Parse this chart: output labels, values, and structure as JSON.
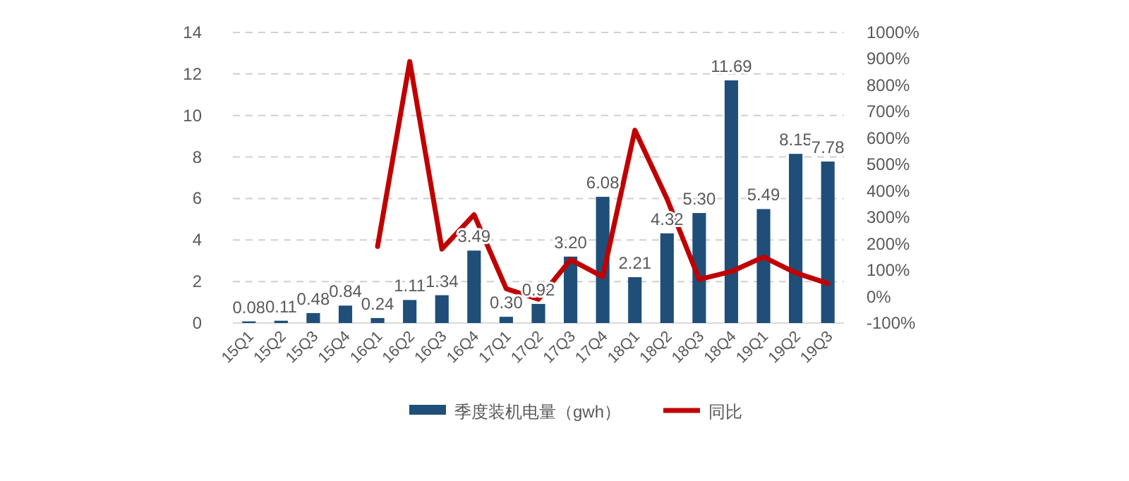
{
  "chart_data": {
    "type": "bar",
    "categories": [
      "15Q1",
      "15Q2",
      "15Q3",
      "15Q4",
      "16Q1",
      "16Q2",
      "16Q3",
      "16Q4",
      "17Q1",
      "17Q2",
      "17Q3",
      "17Q4",
      "18Q1",
      "18Q2",
      "18Q3",
      "18Q4",
      "19Q1",
      "19Q2",
      "19Q3"
    ],
    "series": [
      {
        "name": "季度装机电量（gwh）",
        "color": "#1f4e79",
        "values": [
          0.08,
          0.11,
          0.48,
          0.84,
          0.24,
          1.11,
          1.34,
          3.49,
          0.3,
          0.92,
          3.2,
          6.08,
          2.21,
          4.32,
          5.3,
          11.69,
          5.49,
          8.15,
          7.78
        ],
        "value_labels": [
          "0.08",
          "0.11",
          "0.48",
          "0.84",
          "0.24",
          "1.11",
          "1.34",
          "3.49",
          "0.30",
          "0.92",
          "3.20",
          "6.08",
          "2.21",
          "4.32",
          "5.30",
          "11.69",
          "5.49",
          "8.15",
          "7.78"
        ]
      },
      {
        "name": "同比",
        "type": "line",
        "axis": "y2",
        "color": "#c00000",
        "values": [
          null,
          null,
          null,
          null,
          190,
          890,
          180,
          310,
          30,
          -10,
          140,
          75,
          630,
          370,
          65,
          95,
          150,
          90,
          50
        ]
      }
    ],
    "ylim": [
      0,
      14
    ],
    "yticks": [
      0,
      2,
      4,
      6,
      8,
      10,
      12,
      14
    ],
    "y2lim": [
      -100,
      1000
    ],
    "y2ticks": [
      {
        "value": -100,
        "label": "-100%"
      },
      {
        "value": 0,
        "label": "0%"
      },
      {
        "value": 100,
        "label": "100%"
      },
      {
        "value": 200,
        "label": "200%"
      },
      {
        "value": 300,
        "label": "300%"
      },
      {
        "value": 400,
        "label": "400%"
      },
      {
        "value": 500,
        "label": "500%"
      },
      {
        "value": 600,
        "label": "600%"
      },
      {
        "value": 700,
        "label": "700%"
      },
      {
        "value": 800,
        "label": "800%"
      },
      {
        "value": 900,
        "label": "900%"
      },
      {
        "value": 1000,
        "label": "1000%"
      }
    ],
    "grid": "y",
    "legend": "bottom"
  }
}
